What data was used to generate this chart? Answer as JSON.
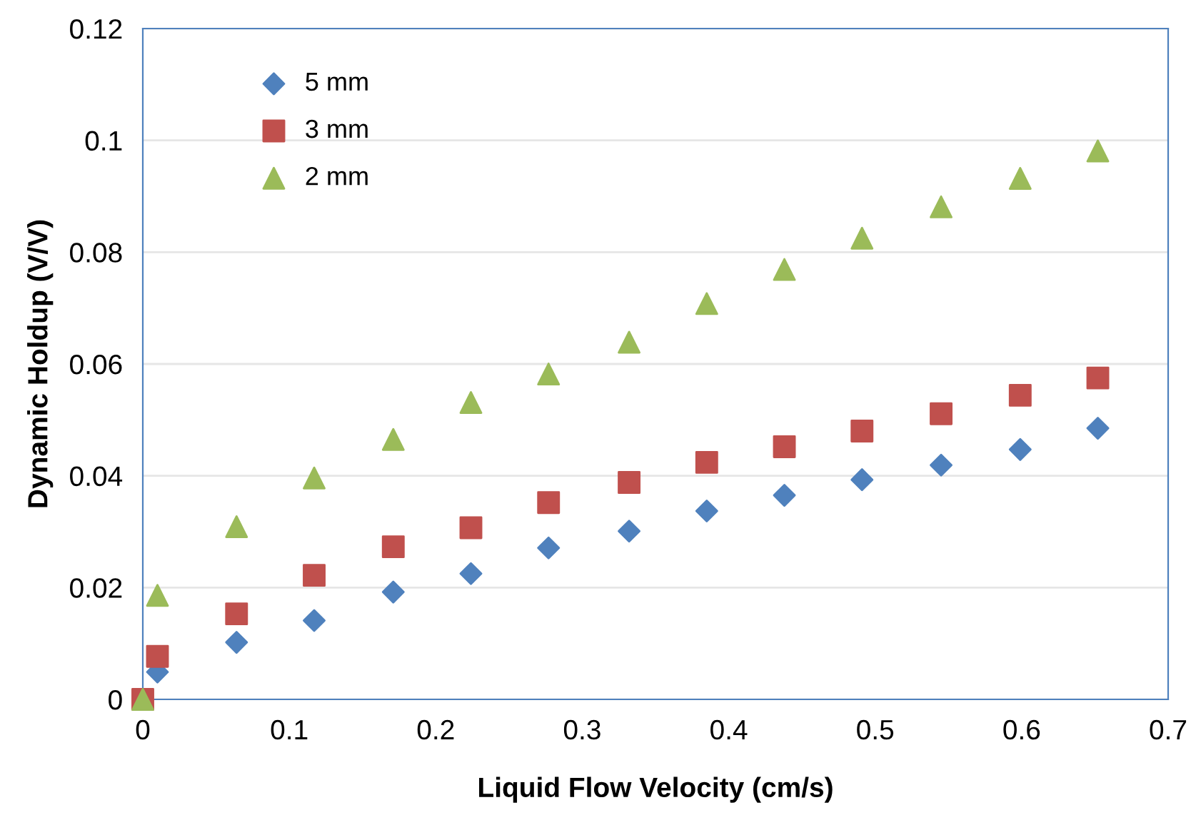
{
  "chart_data": {
    "type": "scatter",
    "xlabel": "Liquid Flow Velocity (cm/s)",
    "ylabel": "Dynamic Holdup (V/V)",
    "x": [
      0,
      0.01,
      0.064,
      0.117,
      0.171,
      0.224,
      0.277,
      0.332,
      0.385,
      0.438,
      0.491,
      0.545,
      0.599,
      0.652
    ],
    "series": [
      {
        "name": "5 mm",
        "color": "#4f81bd",
        "marker": "diamond",
        "values": [
          null,
          0.0049,
          0.0102,
          0.0141,
          0.0192,
          0.0225,
          0.0271,
          0.0301,
          0.0337,
          0.0365,
          0.0393,
          0.0419,
          0.0447,
          0.0485
        ]
      },
      {
        "name": "3 mm",
        "color": "#c0504d",
        "marker": "square",
        "values": [
          0,
          0.0077,
          0.0153,
          0.0222,
          0.0273,
          0.0307,
          0.0352,
          0.0388,
          0.0424,
          0.0452,
          0.048,
          0.0511,
          0.0544,
          0.0575
        ]
      },
      {
        "name": "2 mm",
        "color": "#9bbb59",
        "marker": "triangle",
        "values": [
          0,
          0.0186,
          0.0309,
          0.0396,
          0.0465,
          0.0531,
          0.0582,
          0.0639,
          0.0708,
          0.0769,
          0.0825,
          0.0881,
          0.0932,
          0.0981
        ]
      }
    ],
    "xlim": [
      0,
      0.7
    ],
    "xticks": [
      0,
      0.1,
      0.2,
      0.3,
      0.4,
      0.5,
      0.6,
      0.7
    ],
    "ylim": [
      0,
      0.12
    ],
    "yticks": [
      0,
      0.02,
      0.04,
      0.06,
      0.08,
      0.1,
      0.12
    ],
    "grid": "y",
    "legend": "top left"
  }
}
